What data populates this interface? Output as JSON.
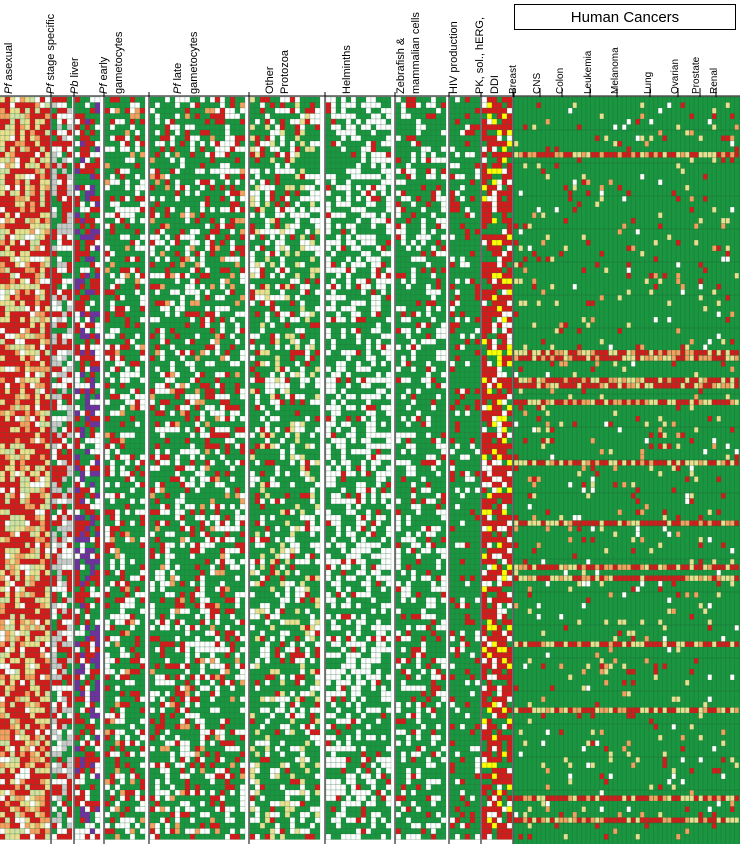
{
  "chart_data": {
    "type": "heatmap",
    "title": "Human Cancers",
    "column_groups": [
      {
        "name": "Pf asexual",
        "italic_prefix": "Pf",
        "rest": " asexual"
      },
      {
        "name": "Pf stage specific",
        "italic_prefix": "Pf",
        "rest": " stage specific"
      },
      {
        "name": "Pb liver",
        "italic_prefix": "Pb",
        "rest": " liver"
      },
      {
        "name": "Pf early gametocytes",
        "italic_prefix": "Pf",
        "rest": " early",
        "line2": "gametocytes"
      },
      {
        "name": "Pf late gametocytes",
        "italic_prefix": "Pf",
        "rest": " late",
        "line2": "gametocytes"
      },
      {
        "name": "Other Protozoa",
        "italic_prefix": "",
        "rest": "Other",
        "line2": "Protozoa"
      },
      {
        "name": "Helminths",
        "italic_prefix": "",
        "rest": "Helminths"
      },
      {
        "name": "Zebrafish & mammalian cells",
        "italic_prefix": "",
        "rest": "Zebrafish &",
        "line2": "mammalian cells"
      },
      {
        "name": "HIV production",
        "italic_prefix": "",
        "rest": "HIV production"
      },
      {
        "name": "PK, sol., hERG, DDI",
        "italic_prefix": "",
        "rest": "PK, sol., hERG,",
        "line2": "DDI"
      }
    ],
    "cancer_groups": [
      "Breast",
      "CNS",
      "Colon",
      "Leukemia",
      "Melanoma",
      "Lung",
      "Ovarian",
      "Prostate",
      "Renal"
    ],
    "color_scale": {
      "active": "#d7191c",
      "moderate": "#f4a060",
      "weak": "#e8e090",
      "inactive": "#1a9641",
      "missing": "#ffffff",
      "pb_liver_accent": "#7030a0",
      "special": "#ffff00"
    }
  }
}
